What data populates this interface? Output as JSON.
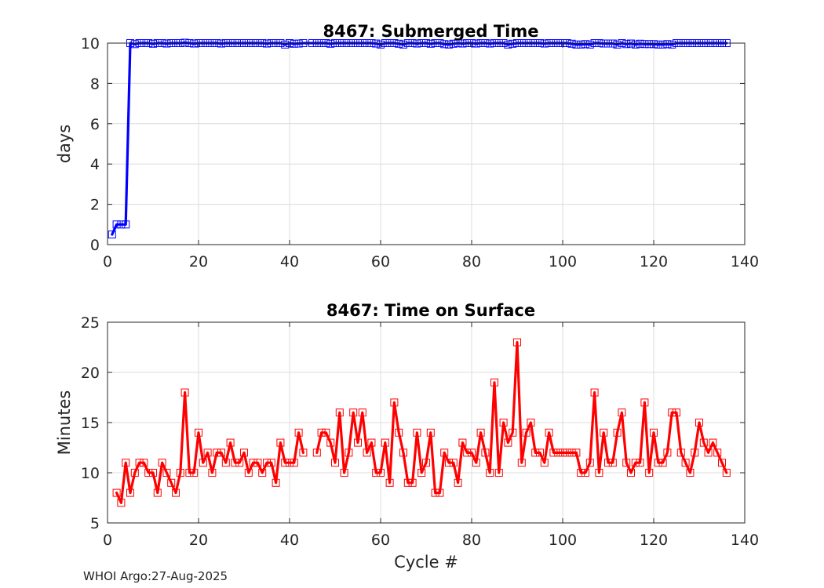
{
  "footer": "WHOI Argo:27-Aug-2025",
  "chart_data": [
    {
      "type": "line",
      "title": "8467: Submerged Time",
      "xlabel": "",
      "ylabel": "days",
      "xlim": [
        0,
        140
      ],
      "ylim": [
        0,
        10
      ],
      "xticks": [
        0,
        20,
        40,
        60,
        80,
        100,
        120,
        140
      ],
      "yticks": [
        0,
        2,
        4,
        6,
        8,
        10
      ],
      "grid": true,
      "line_color": "#0000ff",
      "marker": "square",
      "x": [
        1,
        2,
        3,
        4,
        5,
        6,
        7,
        8,
        9,
        10,
        11,
        12,
        13,
        14,
        15,
        16,
        17,
        18,
        19,
        20,
        21,
        22,
        23,
        24,
        25,
        26,
        27,
        28,
        29,
        30,
        31,
        32,
        33,
        34,
        35,
        36,
        37,
        38,
        39,
        40,
        41,
        42,
        43,
        45,
        46,
        47,
        48,
        49,
        50,
        51,
        52,
        53,
        54,
        55,
        56,
        57,
        58,
        59,
        60,
        61,
        62,
        63,
        64,
        65,
        66,
        67,
        68,
        69,
        70,
        71,
        72,
        73,
        74,
        75,
        76,
        77,
        78,
        79,
        80,
        81,
        82,
        83,
        84,
        85,
        86,
        87,
        88,
        89,
        90,
        91,
        92,
        93,
        94,
        95,
        96,
        97,
        98,
        99,
        100,
        101,
        102,
        103,
        104,
        105,
        106,
        107,
        108,
        109,
        110,
        111,
        112,
        113,
        114,
        115,
        116,
        117,
        118,
        119,
        120,
        121,
        122,
        123,
        124,
        125,
        126,
        127,
        128,
        129,
        130,
        131,
        132,
        133,
        134,
        135,
        136
      ],
      "y": [
        0.5,
        1.0,
        1.0,
        1.0,
        10.0,
        9.95,
        10.0,
        10.0,
        10.0,
        9.97,
        10.0,
        10.0,
        9.98,
        10.0,
        10.0,
        10.0,
        10.02,
        10.0,
        9.98,
        10.0,
        10.0,
        10.0,
        10.0,
        10.0,
        9.98,
        10.0,
        10.0,
        10.0,
        10.0,
        10.0,
        10.0,
        10.0,
        10.0,
        10.0,
        9.98,
        10.0,
        10.0,
        10.0,
        9.93,
        10.0,
        9.97,
        9.98,
        10.0,
        10.0,
        10.0,
        10.0,
        10.0,
        9.97,
        10.0,
        10.0,
        10.0,
        10.0,
        10.0,
        10.0,
        10.0,
        10.0,
        10.0,
        9.98,
        9.93,
        10.0,
        10.0,
        10.0,
        9.97,
        9.93,
        10.0,
        10.0,
        9.98,
        10.0,
        10.0,
        9.97,
        10.0,
        10.0,
        9.95,
        9.93,
        9.97,
        10.0,
        9.98,
        10.0,
        10.0,
        9.98,
        10.0,
        10.0,
        9.98,
        10.0,
        10.0,
        10.0,
        9.93,
        9.97,
        10.0,
        10.0,
        10.0,
        10.0,
        10.0,
        10.0,
        9.98,
        10.0,
        10.0,
        10.0,
        10.0,
        10.0,
        9.97,
        9.93,
        9.93,
        9.95,
        9.93,
        10.0,
        10.0,
        9.98,
        9.98,
        9.98,
        9.93,
        10.0,
        9.95,
        9.98,
        9.93,
        9.97,
        9.95,
        9.95,
        9.95,
        9.93,
        9.93,
        9.95,
        9.93,
        10.0,
        10.0,
        10.0,
        10.0,
        10.0,
        10.0,
        10.0,
        10.0,
        10.0,
        10.0,
        10.0,
        10.0
      ]
    },
    {
      "type": "line",
      "title": "8467: Time on Surface",
      "xlabel": "Cycle #",
      "ylabel": "Minutes",
      "xlim": [
        0,
        140
      ],
      "ylim": [
        5,
        25
      ],
      "xticks": [
        0,
        20,
        40,
        60,
        80,
        100,
        120,
        140
      ],
      "yticks": [
        5,
        10,
        15,
        20,
        25
      ],
      "grid": true,
      "line_color": "#ff0000",
      "marker": "square",
      "segments": [
        {
          "x": [
            2,
            3,
            4,
            5,
            6,
            7,
            8,
            9,
            10,
            11,
            12,
            13,
            14,
            15,
            16,
            17,
            18,
            19,
            20,
            21,
            22,
            23,
            24,
            25,
            26,
            27,
            28,
            29,
            30,
            31,
            32,
            33,
            34,
            35,
            36,
            37,
            38,
            39,
            40,
            41,
            42,
            43
          ],
          "y": [
            8,
            7,
            11,
            8,
            10,
            11,
            11,
            10,
            10,
            8,
            11,
            10,
            9,
            8,
            10,
            18,
            10,
            10,
            14,
            11,
            12,
            10,
            12,
            12,
            11,
            13,
            11,
            11,
            12,
            10,
            11,
            11,
            10,
            11,
            11,
            9,
            13,
            11,
            11,
            11,
            14,
            12
          ]
        },
        {
          "x": [
            46,
            47,
            48,
            49,
            50,
            51,
            52,
            53,
            54,
            55,
            56,
            57,
            58,
            59,
            60,
            61,
            62,
            63,
            64,
            65,
            66,
            67,
            68,
            69,
            70,
            71,
            72,
            73,
            74,
            75,
            76,
            77,
            78,
            79,
            80,
            81,
            82,
            83,
            84,
            85,
            86,
            87,
            88,
            89,
            90,
            91,
            92,
            93,
            94,
            95,
            96,
            97,
            98,
            99,
            100,
            101,
            102,
            103,
            104,
            105,
            106,
            107,
            108,
            109,
            110,
            111,
            112,
            113,
            114,
            115,
            116,
            117,
            118,
            119,
            120,
            121,
            122,
            123,
            124,
            125,
            126,
            127,
            128,
            129,
            130,
            131,
            132,
            133,
            134,
            135,
            136
          ],
          "y": [
            12,
            14,
            14,
            13,
            11,
            16,
            10,
            12,
            16,
            13,
            16,
            12,
            13,
            10,
            10,
            13,
            9,
            17,
            14,
            12,
            9,
            9,
            14,
            10,
            11,
            14,
            8,
            8,
            12,
            11,
            11,
            9,
            13,
            12,
            12,
            11,
            14,
            12,
            10,
            19,
            10,
            15,
            13,
            14,
            23,
            11,
            14,
            15,
            12,
            12,
            11,
            14,
            12,
            12,
            12,
            12,
            12,
            12,
            10,
            10,
            11,
            18,
            10,
            14,
            11,
            11,
            14,
            16,
            11,
            10,
            11,
            11,
            17,
            10,
            14,
            11,
            11,
            12,
            16,
            16,
            12,
            11,
            10,
            12,
            15,
            13,
            12,
            13,
            12,
            11,
            10
          ]
        }
      ]
    }
  ]
}
